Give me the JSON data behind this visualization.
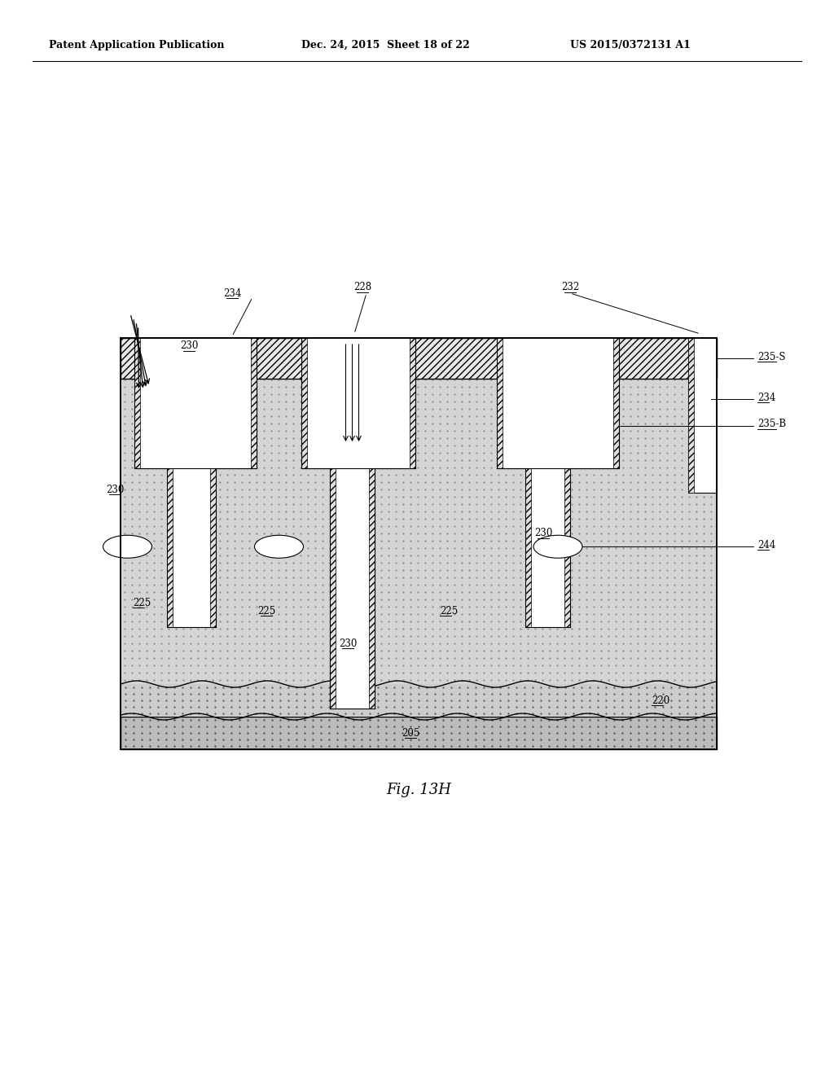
{
  "title": "",
  "header_left": "Patent Application Publication",
  "header_mid": "Dec. 24, 2015  Sheet 18 of 22",
  "header_right": "US 2015/0372131 A1",
  "caption": "Fig. 13H",
  "bg_color": "#ffffff",
  "hatch_color": "#555555",
  "body_dot_color": "#bbbbbb",
  "body_dot_density": 0.5,
  "white_color": "#ffffff",
  "black_color": "#000000",
  "light_gray": "#dddddd",
  "medium_gray": "#aaaaaa",
  "labels": {
    "234_top": "234",
    "228": "228",
    "232": "232",
    "230_top": "230",
    "235S": "235-S",
    "234_right": "234",
    "235B": "235-B",
    "244": "244",
    "230_left": "230",
    "225_left": "225",
    "225_mid": "225",
    "225_right": "225",
    "230_mid": "230",
    "230_right": "230",
    "220": "220",
    "205": "205"
  }
}
